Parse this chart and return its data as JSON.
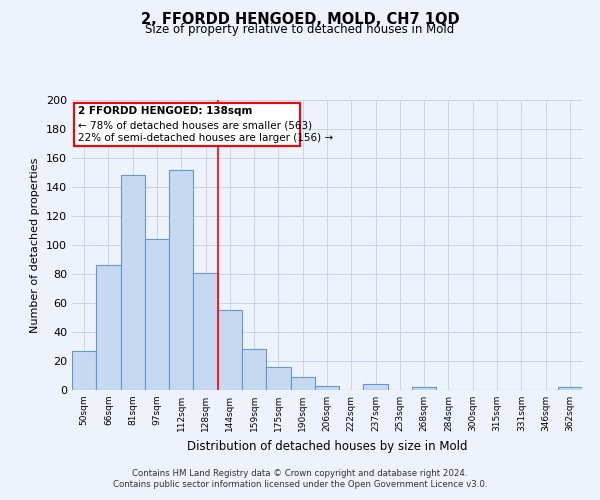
{
  "title": "2, FFORDD HENGOED, MOLD, CH7 1QD",
  "subtitle": "Size of property relative to detached houses in Mold",
  "xlabel": "Distribution of detached houses by size in Mold",
  "ylabel": "Number of detached properties",
  "bar_labels": [
    "50sqm",
    "66sqm",
    "81sqm",
    "97sqm",
    "112sqm",
    "128sqm",
    "144sqm",
    "159sqm",
    "175sqm",
    "190sqm",
    "206sqm",
    "222sqm",
    "237sqm",
    "253sqm",
    "268sqm",
    "284sqm",
    "300sqm",
    "315sqm",
    "331sqm",
    "346sqm",
    "362sqm"
  ],
  "bar_values": [
    27,
    86,
    148,
    104,
    152,
    81,
    55,
    28,
    16,
    9,
    3,
    0,
    4,
    0,
    2,
    0,
    0,
    0,
    0,
    0,
    2
  ],
  "bar_color": "#c6d9f0",
  "bar_edge_color": "#5b9bd5",
  "ylim": [
    0,
    200
  ],
  "yticks": [
    0,
    20,
    40,
    60,
    80,
    100,
    120,
    140,
    160,
    180,
    200
  ],
  "annotation_title": "2 FFORDD HENGOED: 138sqm",
  "annotation_line1": "← 78% of detached houses are smaller (563)",
  "annotation_line2": "22% of semi-detached houses are larger (156) →",
  "red_line_x": 5.5,
  "footnote1": "Contains HM Land Registry data © Crown copyright and database right 2024.",
  "footnote2": "Contains public sector information licensed under the Open Government Licence v3.0.",
  "bg_color": "#eef2fb",
  "grid_color": "#c8d4ee"
}
